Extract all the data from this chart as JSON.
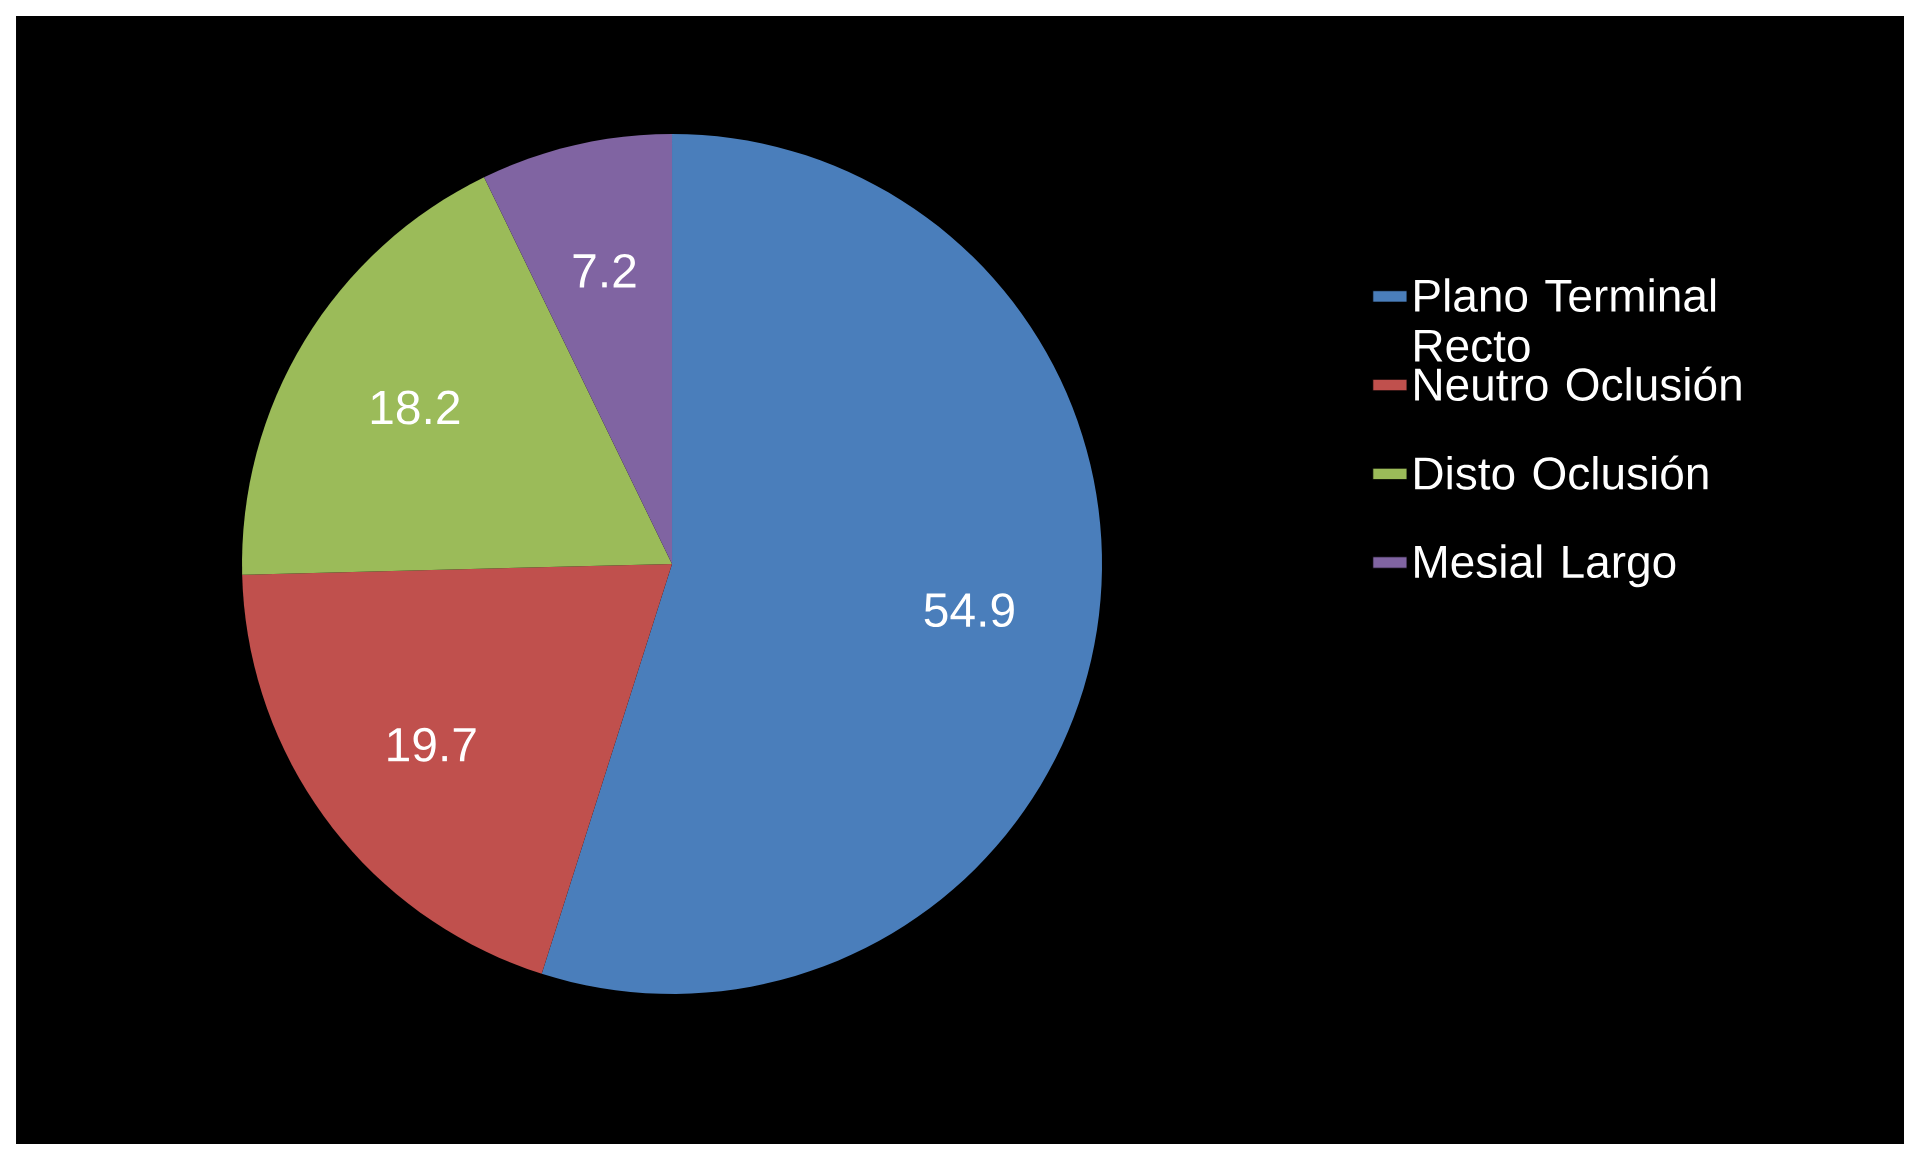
{
  "chart_data": {
    "type": "pie",
    "categories": [
      "Plano Terminal Recto",
      "Neutro Oclusión",
      "Disto Oclusión",
      "Mesial Largo"
    ],
    "values": [
      54.9,
      19.7,
      18.2,
      7.2
    ],
    "colors": [
      "#4a7ebb",
      "#c0504d",
      "#9bbb59",
      "#8064a2"
    ],
    "data_labels": true,
    "legend": "right"
  }
}
